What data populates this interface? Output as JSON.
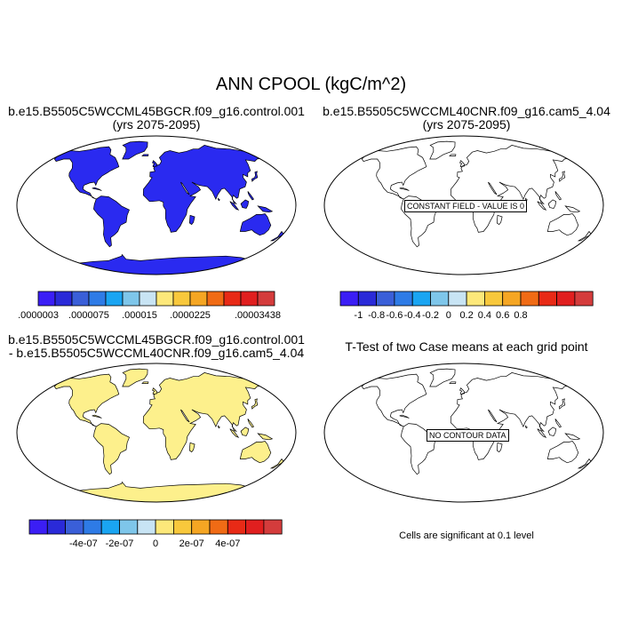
{
  "figure": {
    "title": "ANN CPOOL (kgC/m^2)",
    "note": "Cells are significant at 0.1 level"
  },
  "panels": [
    {
      "id": "top-left",
      "title_line1": "b.e15.B5505C5WCCML45BGCR.f09_g16.control.001",
      "title_line2": "(yrs 2075-2095)",
      "land_fill": "#2a2af0",
      "include_antarctica": true,
      "colorbar": {
        "colors": [
          "#3b1ef5",
          "#2a2ad8",
          "#3a5fd8",
          "#2e7be6",
          "#1aa5f2",
          "#7ec6ea",
          "#c8e4f4",
          "#fde87a",
          "#f8c83c",
          "#f5a623",
          "#f06b15",
          "#e82a16",
          "#e01f1f",
          "#d43c3c"
        ],
        "tick_labels": [
          ".0000003",
          ".0000075",
          ".000015",
          ".0000225",
          ".00003438"
        ]
      }
    },
    {
      "id": "top-right",
      "title_line1": "b.e15.B5505C5WCCML40CNR.f09_g16.cam5_4.04",
      "title_line2": "(yrs 2075-2095)",
      "land_fill": "none",
      "include_antarctica": false,
      "box_label": "CONSTANT FIELD - VALUE IS 0",
      "colorbar": {
        "colors": [
          "#3b1ef5",
          "#2a2ad8",
          "#3a5fd8",
          "#2e7be6",
          "#1aa5f2",
          "#7ec6ea",
          "#c8e4f4",
          "#fde87a",
          "#f8c83c",
          "#f5a623",
          "#f06b15",
          "#e82a16",
          "#e01f1f",
          "#d43c3c"
        ],
        "tick_labels": [
          "-1",
          "-0.8",
          "-0.6",
          "-0.4",
          "-0.2",
          "0",
          "0.2",
          "0.4",
          "0.6",
          "0.8"
        ]
      }
    },
    {
      "id": "bottom-left",
      "title_line1": "b.e15.B5505C5WCCML45BGCR.f09_g16.control.001",
      "title_line2": "- b.e15.B5505C5WCCML40CNR.f09_g16.cam5_4.04",
      "land_fill": "#fdf08c",
      "include_antarctica": true,
      "colorbar": {
        "colors": [
          "#3b1ef5",
          "#2a2ad8",
          "#3a5fd8",
          "#2e7be6",
          "#1aa5f2",
          "#7ec6ea",
          "#c8e4f4",
          "#fde87a",
          "#f8c83c",
          "#f5a623",
          "#f06b15",
          "#e82a16",
          "#e01f1f",
          "#d43c3c"
        ],
        "tick_labels": [
          "-4e-07",
          "-2e-07",
          "0",
          "2e-07",
          "4e-07"
        ]
      }
    },
    {
      "id": "bottom-right",
      "title_line1": "T-Test of two Case means at each grid point",
      "land_fill": "none",
      "include_antarctica": false,
      "box_label": "NO CONTOUR DATA"
    }
  ]
}
